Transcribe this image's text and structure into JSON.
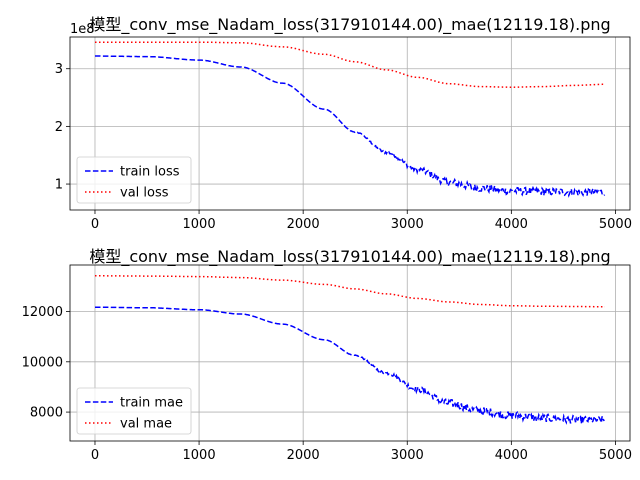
{
  "chart_data": [
    {
      "type": "line",
      "title": "模型_conv_mse_Nadam_loss(317910144.00)_mae(12119.18).png",
      "offset_label": "1e8",
      "xlim": [
        -240,
        5140
      ],
      "ylim": [
        0.55,
        3.55
      ],
      "x_ticks": [
        0,
        1000,
        2000,
        3000,
        4000,
        5000
      ],
      "x_tick_labels": [
        "0",
        "1000",
        "2000",
        "3000",
        "4000",
        "5000"
      ],
      "y_ticks": [
        1,
        2,
        3
      ],
      "y_tick_labels": [
        "1",
        "2",
        "3"
      ],
      "grid": true,
      "legend_position": "lower-left",
      "series": [
        {
          "name": "train loss",
          "color": "#0000ff",
          "style": "dashed",
          "x": [
            0,
            500,
            1000,
            1400,
            1800,
            2200,
            2500,
            2800,
            3100,
            3400,
            3700,
            4000,
            4300,
            4600,
            4900
          ],
          "y": [
            3.22,
            3.21,
            3.15,
            3.03,
            2.75,
            2.3,
            1.9,
            1.55,
            1.25,
            1.03,
            0.93,
            0.88,
            0.87,
            0.86,
            0.86
          ],
          "noise": true
        },
        {
          "name": "val loss",
          "color": "#ff0000",
          "style": "dotted",
          "x": [
            0,
            500,
            1000,
            1400,
            1800,
            2200,
            2500,
            2800,
            3100,
            3400,
            3700,
            4000,
            4300,
            4600,
            4900
          ],
          "y": [
            3.46,
            3.46,
            3.46,
            3.45,
            3.38,
            3.25,
            3.12,
            2.98,
            2.85,
            2.74,
            2.69,
            2.68,
            2.69,
            2.71,
            2.73
          ]
        }
      ]
    },
    {
      "type": "line",
      "title": "模型_conv_mse_Nadam_loss(317910144.00)_mae(12119.18).png",
      "xlim": [
        -240,
        5140
      ],
      "ylim": [
        6850,
        13850
      ],
      "x_ticks": [
        0,
        1000,
        2000,
        3000,
        4000,
        5000
      ],
      "x_tick_labels": [
        "0",
        "1000",
        "2000",
        "3000",
        "4000",
        "5000"
      ],
      "y_ticks": [
        8000,
        10000,
        12000
      ],
      "y_tick_labels": [
        "8000",
        "10000",
        "12000"
      ],
      "grid": true,
      "legend_position": "lower-left",
      "series": [
        {
          "name": "train mae",
          "color": "#0000ff",
          "style": "dashed",
          "x": [
            0,
            500,
            1000,
            1400,
            1800,
            2200,
            2500,
            2800,
            3100,
            3400,
            3700,
            4000,
            4300,
            4600,
            4900
          ],
          "y": [
            12170,
            12150,
            12070,
            11900,
            11500,
            10880,
            10250,
            9550,
            8900,
            8350,
            8050,
            7870,
            7760,
            7700,
            7680
          ],
          "noise": true
        },
        {
          "name": "val mae",
          "color": "#ff0000",
          "style": "dotted",
          "x": [
            0,
            500,
            1000,
            1400,
            1800,
            2200,
            2500,
            2800,
            3100,
            3400,
            3700,
            4000,
            4300,
            4600,
            4900
          ],
          "y": [
            13420,
            13410,
            13390,
            13350,
            13250,
            13080,
            12900,
            12700,
            12520,
            12380,
            12280,
            12230,
            12210,
            12200,
            12190
          ]
        }
      ]
    }
  ]
}
